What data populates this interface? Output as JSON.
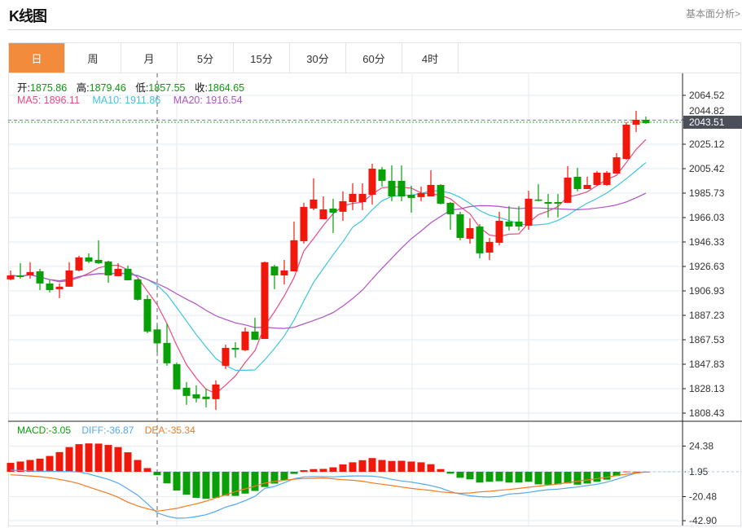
{
  "header": {
    "title": "K线图",
    "fundamental_link": "基本面分析>"
  },
  "tabs": [
    {
      "label": "日",
      "active": true
    },
    {
      "label": "周",
      "active": false
    },
    {
      "label": "月",
      "active": false
    },
    {
      "label": "5分",
      "active": false
    },
    {
      "label": "15分",
      "active": false
    },
    {
      "label": "30分",
      "active": false
    },
    {
      "label": "60分",
      "active": false
    },
    {
      "label": "4时",
      "active": false
    }
  ],
  "ohlc_legend": {
    "open_label": "开:",
    "open": "1875.86",
    "high_label": "高:",
    "high": "1879.46",
    "low_label": "低:",
    "low": "1857.55",
    "close_label": "收:",
    "close": "1864.65"
  },
  "ma_legend": {
    "ma5": "MA5: 1896.11",
    "ma10": "MA10: 1911.86",
    "ma20": "MA20: 1916.54"
  },
  "macd_legend": {
    "macd": "MACD:-3.05",
    "diff": "DIFF:-36.87",
    "dea": "DEA:-35.34"
  },
  "colors": {
    "up": "#f2170b",
    "down": "#07a007",
    "ma5": "#ee4a7e",
    "ma10": "#3dc6e0",
    "ma20": "#b152c9",
    "diff": "#53a8f2",
    "dea": "#f57a1f",
    "accent": "#f28c3c",
    "last_price_bg": "#4a4f5a"
  },
  "chart_data": [
    {
      "type": "candlestick",
      "title": "K线图",
      "price_ticks": [
        "2064.52",
        "2044.82",
        "2025.12",
        "2005.42",
        "1985.73",
        "1966.03",
        "1946.33",
        "1926.63",
        "1906.93",
        "1887.23",
        "1867.53",
        "1847.83",
        "1828.13",
        "1808.43"
      ],
      "ylim": [
        1808.43,
        2064.52
      ],
      "last_price": "2043.51",
      "crosshair_index": 15,
      "ma_periods": [
        5,
        10,
        20
      ],
      "ohlc": [
        [
          1916.2,
          1923.4,
          1915.5,
          1919.4
        ],
        [
          1919.4,
          1929.3,
          1916.8,
          1918.1
        ],
        [
          1919.4,
          1930.0,
          1916.8,
          1922.1
        ],
        [
          1922.7,
          1924.7,
          1907.6,
          1912.9
        ],
        [
          1912.9,
          1915.5,
          1905.7,
          1907.6
        ],
        [
          1908.3,
          1912.9,
          1901.1,
          1910.3
        ],
        [
          1910.3,
          1930.0,
          1910.3,
          1923.4
        ],
        [
          1923.4,
          1935.2,
          1922.7,
          1933.9
        ],
        [
          1933.9,
          1937.2,
          1929.3,
          1930.6
        ],
        [
          1931.9,
          1947.7,
          1928.6,
          1929.3
        ],
        [
          1930.6,
          1931.3,
          1913.5,
          1919.4
        ],
        [
          1918.8,
          1929.3,
          1918.8,
          1924.7
        ],
        [
          1924.7,
          1927.3,
          1915.5,
          1915.5
        ],
        [
          1916.2,
          1916.8,
          1899.1,
          1899.8
        ],
        [
          1900.4,
          1903.7,
          1872.8,
          1874.2
        ],
        [
          1875.86,
          1879.46,
          1857.55,
          1864.65
        ],
        [
          1865.0,
          1880.7,
          1846.6,
          1848.6
        ],
        [
          1847.9,
          1849.2,
          1827.6,
          1827.6
        ],
        [
          1828.9,
          1833.5,
          1815.1,
          1822.3
        ],
        [
          1823.6,
          1830.8,
          1817.0,
          1820.3
        ],
        [
          1821.7,
          1828.2,
          1813.1,
          1819.7
        ],
        [
          1819.7,
          1834.8,
          1811.1,
          1831.5
        ],
        [
          1846.6,
          1863.6,
          1844.0,
          1861.0
        ],
        [
          1861.0,
          1865.6,
          1853.2,
          1859.7
        ],
        [
          1859.1,
          1877.4,
          1858.4,
          1874.2
        ],
        [
          1874.2,
          1885.3,
          1867.6,
          1867.6
        ],
        [
          1868.2,
          1930.6,
          1868.2,
          1930.0
        ],
        [
          1926.7,
          1928.0,
          1908.3,
          1919.4
        ],
        [
          1919.4,
          1931.9,
          1912.2,
          1923.4
        ],
        [
          1922.7,
          1962.8,
          1922.7,
          1947.7
        ],
        [
          1947.0,
          1977.9,
          1945.0,
          1974.6
        ],
        [
          1973.3,
          1997.6,
          1972.0,
          1980.5
        ],
        [
          1964.7,
          1983.1,
          1964.7,
          1972.6
        ],
        [
          1973.3,
          1981.2,
          1953.6,
          1970.0
        ],
        [
          1970.7,
          1987.1,
          1963.4,
          1979.2
        ],
        [
          1978.5,
          1993.6,
          1972.0,
          1985.1
        ],
        [
          1978.5,
          1993.6,
          1972.0,
          1985.1
        ],
        [
          1984.4,
          2009.4,
          1976.6,
          2005.4
        ],
        [
          2004.8,
          2006.8,
          1991.0,
          1995.6
        ],
        [
          1995.6,
          2008.1,
          1979.2,
          1983.1
        ],
        [
          1995.6,
          2008.1,
          1979.2,
          1983.1
        ],
        [
          1984.4,
          1991.7,
          1970.0,
          1981.8
        ],
        [
          1982.5,
          1991.0,
          1979.2,
          1985.8
        ],
        [
          1983.1,
          2004.1,
          1983.1,
          1992.3
        ],
        [
          1992.3,
          1993.0,
          1976.6,
          1977.2
        ],
        [
          1977.9,
          1978.5,
          1956.2,
          1968.7
        ],
        [
          1968.7,
          1970.7,
          1947.7,
          1949.6
        ],
        [
          1949.0,
          1965.4,
          1945.0,
          1957.5
        ],
        [
          1958.8,
          1960.8,
          1933.2,
          1937.2
        ],
        [
          1937.8,
          1949.6,
          1931.9,
          1946.4
        ],
        [
          1945.7,
          1970.7,
          1943.7,
          1963.4
        ],
        [
          1962.8,
          1975.3,
          1955.6,
          1958.8
        ],
        [
          1962.8,
          1975.3,
          1955.6,
          1958.8
        ],
        [
          1959.5,
          1987.7,
          1956.2,
          1981.2
        ],
        [
          1980.5,
          1993.0,
          1979.2,
          1979.9
        ],
        [
          1978.5,
          1985.1,
          1966.1,
          1977.2
        ],
        [
          1978.5,
          1985.1,
          1966.1,
          1977.2
        ],
        [
          1977.9,
          2007.4,
          1977.9,
          1998.2
        ],
        [
          1998.9,
          2006.1,
          1987.1,
          1989.0
        ],
        [
          1989.0,
          1998.9,
          1989.0,
          1992.3
        ],
        [
          1992.3,
          2003.5,
          1991.7,
          2002.2
        ],
        [
          1992.3,
          2003.5,
          1991.7,
          2002.2
        ],
        [
          2001.5,
          2017.9,
          2001.5,
          2014.6
        ],
        [
          2013.3,
          2042.9,
          2012.7,
          2040.9
        ],
        [
          2040.9,
          2052.0,
          2035.0,
          2044.8
        ],
        [
          2044.8,
          2047.4,
          2041.5,
          2042.2
        ]
      ]
    },
    {
      "type": "bar+line",
      "title": "MACD",
      "ticks": [
        "24.38",
        "1.95",
        "-20.48",
        "-42.90"
      ],
      "macd": [
        8.0,
        9.2,
        10.6,
        11.8,
        14.2,
        17.7,
        22.2,
        24.8,
        25.5,
        25.3,
        24.1,
        22.2,
        17.5,
        10.6,
        3.3,
        -3.05,
        -10.4,
        -16.8,
        -20.5,
        -23.4,
        -24.3,
        -23.4,
        -21.5,
        -21.7,
        -19.6,
        -17.2,
        -13.7,
        -10.6,
        -7.3,
        -1.9,
        1.4,
        2.4,
        2.6,
        4.0,
        6.6,
        8.5,
        10.4,
        12.3,
        10.6,
        9.7,
        9.9,
        9.2,
        8.5,
        6.8,
        2.4,
        -1.7,
        -5.4,
        -6.8,
        -9.7,
        -9.0,
        -8.5,
        -9.7,
        -9.7,
        -9.0,
        -11.3,
        -11.6,
        -11.3,
        -10.4,
        -11.6,
        -10.6,
        -9.0,
        -7.1,
        -3.8,
        0.2,
        0.1,
        0.1
      ],
      "diff": [
        1.5,
        1.2,
        0.7,
        0.5,
        0.5,
        0.2,
        0.2,
        -0.2,
        -2.0,
        -4.4,
        -6.8,
        -10.2,
        -15.4,
        -21.0,
        -28.8,
        -36.87,
        -40.0,
        -41.7,
        -41.5,
        -40.3,
        -38.6,
        -35.6,
        -31.7,
        -29.3,
        -25.9,
        -22.0,
        -14.9,
        -13.2,
        -9.8,
        -6.3,
        -4.6,
        -4.4,
        -4.4,
        -4.6,
        -4.1,
        -3.7,
        -3.7,
        -3.9,
        -4.9,
        -6.8,
        -8.3,
        -9.3,
        -10.7,
        -12.4,
        -14.6,
        -17.8,
        -20.0,
        -21.5,
        -22.4,
        -22.7,
        -22.0,
        -20.0,
        -19.5,
        -18.5,
        -17.1,
        -16.1,
        -15.6,
        -14.6,
        -13.7,
        -12.4,
        -11.2,
        -9.3,
        -6.8,
        -3.9,
        -1.2,
        0.0
      ],
      "dea": [
        -2.7,
        -3.2,
        -3.7,
        -4.4,
        -5.4,
        -6.8,
        -8.5,
        -10.7,
        -13.7,
        -16.6,
        -19.5,
        -22.9,
        -27.3,
        -30.7,
        -33.2,
        -35.34,
        -34.2,
        -32.9,
        -30.7,
        -28.8,
        -26.4,
        -23.4,
        -20.7,
        -17.8,
        -15.4,
        -12.9,
        -10.2,
        -8.8,
        -7.6,
        -6.6,
        -6.1,
        -5.9,
        -5.6,
        -6.3,
        -7.1,
        -7.6,
        -8.5,
        -10.0,
        -11.2,
        -12.4,
        -13.7,
        -14.9,
        -15.9,
        -16.8,
        -18.1,
        -18.8,
        -19.3,
        -19.0,
        -18.1,
        -17.6,
        -16.6,
        -15.9,
        -14.9,
        -13.9,
        -12.9,
        -12.0,
        -11.0,
        -9.8,
        -8.5,
        -7.3,
        -6.1,
        -4.9,
        -3.4,
        -2.2,
        -1.0,
        -0.2
      ]
    }
  ]
}
